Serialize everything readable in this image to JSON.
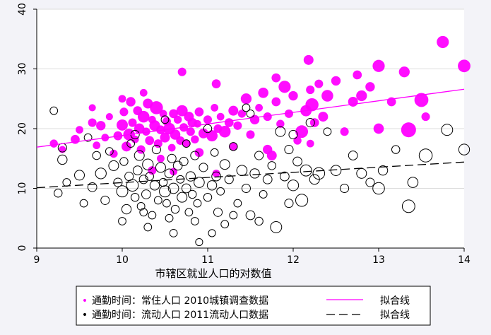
{
  "chart_data": {
    "type": "scatter",
    "xlabel": "市辖区就业人口的对数值",
    "ylabel": "",
    "xlim": [
      9,
      14
    ],
    "ylim": [
      0,
      40
    ],
    "xticks": [
      "9",
      "10",
      "11",
      "12",
      "13",
      "14"
    ],
    "yticks": [
      "0",
      "10",
      "20",
      "30",
      "40"
    ],
    "grid": "horizontal",
    "legend_position": "bottom",
    "legend": [
      {
        "marker": "•",
        "label": "通勤时间：常住人口 2010城镇调查数据",
        "line_label": "拟合线"
      },
      {
        "marker": "•",
        "label": "通勤时间：流动人口 2011流动人口数据",
        "line_label": "拟合线"
      }
    ],
    "series": [
      {
        "style": "filled",
        "color": "#ff00ff",
        "fit": [
          [
            9.0,
            16.9
          ],
          [
            14.0,
            26.6
          ]
        ],
        "points": [
          [
            9.2,
            17.5,
            1.1
          ],
          [
            9.3,
            16.5,
            0.9
          ],
          [
            9.45,
            18.2,
            1.3
          ],
          [
            9.5,
            19.8,
            1.0
          ],
          [
            9.65,
            21.0,
            1.2
          ],
          [
            9.7,
            17.2,
            1.0
          ],
          [
            9.75,
            20.5,
            1.4
          ],
          [
            9.8,
            18.5,
            1.0
          ],
          [
            9.9,
            15.8,
            1.1
          ],
          [
            9.95,
            18.8,
            1.3
          ],
          [
            10.0,
            20.6,
            1.8
          ],
          [
            10.02,
            22.8,
            1.2
          ],
          [
            10.05,
            17.0,
            1.5
          ],
          [
            10.08,
            19.0,
            1.9
          ],
          [
            10.1,
            24.5,
            1.4
          ],
          [
            10.12,
            21.0,
            1.2
          ],
          [
            10.15,
            18.2,
            1.0
          ],
          [
            10.18,
            23.0,
            1.3
          ],
          [
            10.2,
            20.0,
            1.6
          ],
          [
            10.22,
            16.5,
            1.2
          ],
          [
            10.25,
            22.0,
            1.9
          ],
          [
            10.28,
            19.5,
            1.1
          ],
          [
            10.3,
            24.2,
            1.5
          ],
          [
            10.32,
            18.0,
            1.3
          ],
          [
            10.35,
            21.5,
            1.0
          ],
          [
            10.38,
            20.5,
            1.7
          ],
          [
            10.4,
            23.5,
            2.2
          ],
          [
            10.42,
            17.5,
            1.2
          ],
          [
            10.45,
            19.8,
            1.3
          ],
          [
            10.48,
            22.5,
            1.0
          ],
          [
            10.5,
            18.5,
            1.5
          ],
          [
            10.52,
            21.2,
            1.2
          ],
          [
            10.55,
            20.0,
            1.9
          ],
          [
            10.58,
            16.8,
            1.0
          ],
          [
            10.6,
            22.5,
            1.3
          ],
          [
            10.62,
            19.0,
            1.6
          ],
          [
            10.65,
            21.5,
            1.1
          ],
          [
            10.68,
            18.0,
            1.2
          ],
          [
            10.7,
            23.0,
            1.8
          ],
          [
            10.72,
            20.2,
            1.2
          ],
          [
            10.75,
            17.5,
            1.0
          ],
          [
            10.78,
            22.0,
            1.5
          ],
          [
            10.8,
            19.5,
            1.2
          ],
          [
            10.82,
            21.0,
            1.4
          ],
          [
            10.85,
            18.2,
            1.1
          ],
          [
            10.88,
            20.8,
            1.0
          ],
          [
            10.9,
            22.8,
            1.3
          ],
          [
            10.95,
            19.2,
            1.5
          ],
          [
            11.0,
            21.5,
            1.2
          ],
          [
            11.05,
            18.8,
            1.8
          ],
          [
            11.08,
            23.5,
            1.0
          ],
          [
            11.1,
            27.5,
            1.3
          ],
          [
            11.12,
            20.0,
            1.2
          ],
          [
            11.15,
            22.0,
            1.0
          ],
          [
            11.2,
            19.5,
            1.9
          ],
          [
            11.25,
            21.0,
            1.3
          ],
          [
            11.3,
            23.0,
            1.5
          ],
          [
            11.35,
            20.5,
            1.2
          ],
          [
            11.4,
            22.5,
            1.1
          ],
          [
            11.45,
            25.0,
            1.7
          ],
          [
            11.5,
            19.0,
            1.2
          ],
          [
            11.55,
            21.5,
            1.4
          ],
          [
            11.6,
            23.5,
            1.0
          ],
          [
            11.65,
            26.0,
            1.6
          ],
          [
            11.7,
            22.0,
            1.2
          ],
          [
            11.75,
            15.5,
            1.5
          ],
          [
            11.8,
            24.5,
            1.3
          ],
          [
            11.85,
            20.8,
            1.1
          ],
          [
            11.9,
            27.0,
            2.0
          ],
          [
            11.95,
            22.5,
            1.2
          ],
          [
            12.0,
            25.5,
            1.4
          ],
          [
            12.05,
            18.0,
            1.1
          ],
          [
            12.1,
            19.5,
            2.1
          ],
          [
            12.15,
            23.0,
            1.8
          ],
          [
            12.18,
            31.5,
            1.5
          ],
          [
            12.2,
            26.5,
            1.2
          ],
          [
            12.22,
            24.0,
            2.2
          ],
          [
            12.25,
            21.0,
            1.3
          ],
          [
            12.3,
            27.5,
            1.2
          ],
          [
            12.35,
            22.0,
            1.5
          ],
          [
            12.4,
            25.5,
            1.9
          ],
          [
            12.5,
            28.0,
            1.4
          ],
          [
            12.6,
            19.5,
            1.2
          ],
          [
            12.7,
            24.5,
            1.5
          ],
          [
            12.75,
            29.0,
            1.3
          ],
          [
            12.8,
            25.5,
            1.7
          ],
          [
            12.9,
            27.0,
            1.4
          ],
          [
            13.0,
            30.5,
            2.0
          ],
          [
            13.0,
            20.0,
            1.6
          ],
          [
            13.15,
            24.5,
            1.3
          ],
          [
            13.3,
            29.5,
            1.7
          ],
          [
            13.35,
            19.8,
            2.6
          ],
          [
            13.5,
            24.8,
            2.4
          ],
          [
            13.55,
            22.0,
            1.2
          ],
          [
            13.75,
            34.5,
            2.0
          ],
          [
            14.0,
            30.5,
            2.1
          ],
          [
            9.85,
            22.0,
            0.9
          ],
          [
            10.0,
            25.0,
            1.0
          ],
          [
            10.35,
            13.0,
            1.2
          ],
          [
            10.6,
            12.8,
            1.0
          ],
          [
            10.9,
            16.0,
            1.3
          ],
          [
            11.1,
            12.5,
            1.0
          ],
          [
            11.3,
            17.0,
            1.1
          ],
          [
            11.7,
            16.5,
            1.4
          ],
          [
            10.25,
            26.0,
            1.0
          ],
          [
            10.7,
            29.5,
            1.2
          ],
          [
            11.8,
            28.5,
            1.3
          ],
          [
            12.2,
            17.5,
            1.0
          ],
          [
            9.65,
            23.5,
            0.9
          ],
          [
            10.45,
            15.0,
            1.0
          ]
        ]
      },
      {
        "style": "hollow",
        "color": "#000000",
        "fit": [
          [
            9.0,
            10.1
          ],
          [
            14.0,
            14.4
          ]
        ],
        "points": [
          [
            9.2,
            23.0,
            1.0
          ],
          [
            9.25,
            9.2,
            1.1
          ],
          [
            9.3,
            16.8,
            1.2
          ],
          [
            9.3,
            14.8,
            1.4
          ],
          [
            9.35,
            11.0,
            1.0
          ],
          [
            9.5,
            12.2,
            1.5
          ],
          [
            9.55,
            7.5,
            1.0
          ],
          [
            9.65,
            10.2,
            1.3
          ],
          [
            9.7,
            15.5,
            1.1
          ],
          [
            9.75,
            12.5,
            1.7
          ],
          [
            9.8,
            8.0,
            1.2
          ],
          [
            9.85,
            16.2,
            1.0
          ],
          [
            9.9,
            13.8,
            1.5
          ],
          [
            9.95,
            11.0,
            1.2
          ],
          [
            10.0,
            9.5,
            1.8
          ],
          [
            10.02,
            14.5,
            1.1
          ],
          [
            10.05,
            6.5,
            1.4
          ],
          [
            10.08,
            12.0,
            1.2
          ],
          [
            10.1,
            17.5,
            1.0
          ],
          [
            10.12,
            10.5,
            1.9
          ],
          [
            10.15,
            8.5,
            1.1
          ],
          [
            10.18,
            13.0,
            1.3
          ],
          [
            10.2,
            15.5,
            1.5
          ],
          [
            10.22,
            7.0,
            1.0
          ],
          [
            10.25,
            11.5,
            1.2
          ],
          [
            10.28,
            9.0,
            1.3
          ],
          [
            10.3,
            14.0,
            1.7
          ],
          [
            10.32,
            12.0,
            1.1
          ],
          [
            10.35,
            5.5,
            1.0
          ],
          [
            10.38,
            10.5,
            1.4
          ],
          [
            10.4,
            16.5,
            1.2
          ],
          [
            10.42,
            8.0,
            1.0
          ],
          [
            10.45,
            13.5,
            1.5
          ],
          [
            10.48,
            11.0,
            1.1
          ],
          [
            10.5,
            9.5,
            1.8
          ],
          [
            10.52,
            7.5,
            1.0
          ],
          [
            10.55,
            12.5,
            1.3
          ],
          [
            10.58,
            15.0,
            1.2
          ],
          [
            10.6,
            10.0,
            1.6
          ],
          [
            10.62,
            6.5,
            1.1
          ],
          [
            10.65,
            13.8,
            1.3
          ],
          [
            10.68,
            11.5,
            1.0
          ],
          [
            10.7,
            8.5,
            1.5
          ],
          [
            10.72,
            14.5,
            1.2
          ],
          [
            10.75,
            10.0,
            1.3
          ],
          [
            10.78,
            6.0,
            1.0
          ],
          [
            10.8,
            12.0,
            1.4
          ],
          [
            10.82,
            9.0,
            1.1
          ],
          [
            10.85,
            15.5,
            1.2
          ],
          [
            10.88,
            7.5,
            1.0
          ],
          [
            10.9,
            11.0,
            1.6
          ],
          [
            10.95,
            13.5,
            1.2
          ],
          [
            11.0,
            8.5,
            1.1
          ],
          [
            11.05,
            10.5,
            1.4
          ],
          [
            11.08,
            16.0,
            1.0
          ],
          [
            11.1,
            12.0,
            1.3
          ],
          [
            11.12,
            6.0,
            1.2
          ],
          [
            11.15,
            9.5,
            1.0
          ],
          [
            11.2,
            14.0,
            1.5
          ],
          [
            11.25,
            11.5,
            1.2
          ],
          [
            11.3,
            17.0,
            1.1
          ],
          [
            11.35,
            7.5,
            1.0
          ],
          [
            11.4,
            13.0,
            1.6
          ],
          [
            11.45,
            10.0,
            1.2
          ],
          [
            11.5,
            5.5,
            1.3
          ],
          [
            11.55,
            12.5,
            1.4
          ],
          [
            11.6,
            15.5,
            1.2
          ],
          [
            11.65,
            9.0,
            1.0
          ],
          [
            11.7,
            11.5,
            1.3
          ],
          [
            11.75,
            13.8,
            1.1
          ],
          [
            11.8,
            3.5,
            1.8
          ],
          [
            11.85,
            19.5,
            1.5
          ],
          [
            11.9,
            12.0,
            1.3
          ],
          [
            11.95,
            16.5,
            1.2
          ],
          [
            12.0,
            10.5,
            1.7
          ],
          [
            12.05,
            14.5,
            1.3
          ],
          [
            12.1,
            8.0,
            2.0
          ],
          [
            12.15,
            13.0,
            1.8
          ],
          [
            12.2,
            21.0,
            1.2
          ],
          [
            12.25,
            11.5,
            1.5
          ],
          [
            12.3,
            12.5,
            1.9
          ],
          [
            12.4,
            19.5,
            1.0
          ],
          [
            12.5,
            13.0,
            1.6
          ],
          [
            12.6,
            10.0,
            1.2
          ],
          [
            12.7,
            15.5,
            1.3
          ],
          [
            12.8,
            12.5,
            1.5
          ],
          [
            12.9,
            11.0,
            1.2
          ],
          [
            13.0,
            10.0,
            1.9
          ],
          [
            13.05,
            13.0,
            1.4
          ],
          [
            13.2,
            16.5,
            1.1
          ],
          [
            13.35,
            7.0,
            2.1
          ],
          [
            13.4,
            11.0,
            1.6
          ],
          [
            13.55,
            15.5,
            2.2
          ],
          [
            13.8,
            19.8,
            1.8
          ],
          [
            14.0,
            16.5,
            1.7
          ],
          [
            10.0,
            4.5,
            1.0
          ],
          [
            10.3,
            3.5,
            1.0
          ],
          [
            10.6,
            2.5,
            1.0
          ],
          [
            10.9,
            1.0,
            0.9
          ],
          [
            11.2,
            4.0,
            1.0
          ],
          [
            11.6,
            4.5,
            1.1
          ],
          [
            10.15,
            19.0,
            1.2
          ],
          [
            10.5,
            21.5,
            1.0
          ],
          [
            10.75,
            17.5,
            1.0
          ],
          [
            11.0,
            20.0,
            1.1
          ],
          [
            11.5,
            22.5,
            1.0
          ],
          [
            12.0,
            19.0,
            1.2
          ],
          [
            9.6,
            18.5,
            1.0
          ],
          [
            11.45,
            23.5,
            1.0
          ],
          [
            10.25,
            6.0,
            1.0
          ],
          [
            10.55,
            5.0,
            1.0
          ],
          [
            11.95,
            7.5,
            1.2
          ],
          [
            11.3,
            5.5,
            1.0
          ],
          [
            10.85,
            4.5,
            1.0
          ],
          [
            11.05,
            2.5,
            0.9
          ]
        ]
      }
    ]
  }
}
